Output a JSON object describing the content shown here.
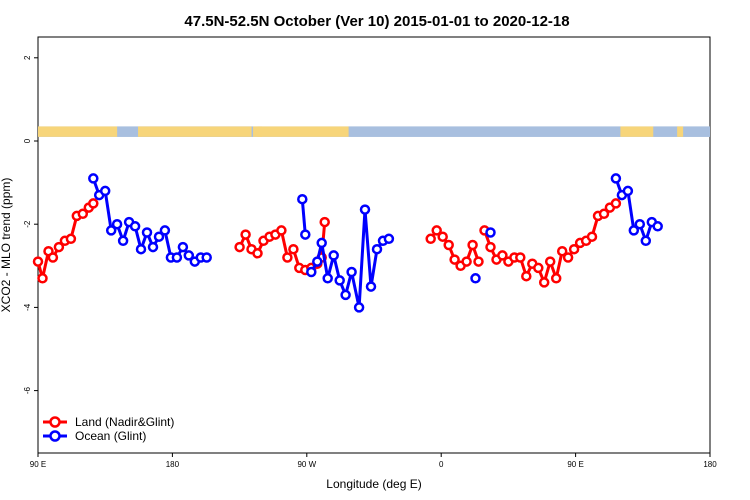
{
  "chart_data": {
    "type": "line",
    "title": "47.5N-52.5N October (Ver 10)   2015-01-01 to 2020-12-18",
    "xlabel": "Longitude (deg E)",
    "ylabel": "XCO2 - MLO trend (ppm)",
    "xlim": [
      90,
      540
    ],
    "ylim": [
      -7.5,
      2.5
    ],
    "x_ticks": [
      {
        "value": 90,
        "label": "90 E"
      },
      {
        "value": 180,
        "label": "180"
      },
      {
        "value": 270,
        "label": "90 W"
      },
      {
        "value": 360,
        "label": "0"
      },
      {
        "value": 450,
        "label": "90 E"
      },
      {
        "value": 540,
        "label": "180"
      }
    ],
    "y_ticks": [
      {
        "value": 2,
        "label": "2"
      },
      {
        "value": 0,
        "label": "0"
      },
      {
        "value": -2,
        "label": "-2"
      },
      {
        "value": -4,
        "label": "-4"
      },
      {
        "value": -6,
        "label": "-6"
      }
    ],
    "grid": false,
    "legend_position": "bottom-left",
    "land_ocean_band": {
      "y_range": [
        0.1,
        0.35
      ],
      "land_color": "#f7d57a",
      "ocean_color": "#a8bfdf",
      "land_segments": [
        [
          90,
          143
        ],
        [
          157,
          233
        ],
        [
          240,
          237
        ],
        [
          234,
          298
        ],
        [
          480,
          502
        ],
        [
          518,
          522
        ]
      ],
      "ocean_segments": [
        [
          143,
          234
        ],
        [
          298,
          480
        ],
        [
          502,
          540
        ]
      ]
    },
    "series": [
      {
        "name": "Land (Nadir&Glint)",
        "color": "#ff0000",
        "values": [
          [
            [
              90,
              -2.9
            ],
            [
              93,
              -3.3
            ],
            [
              97,
              -2.65
            ],
            [
              100,
              -2.8
            ],
            [
              104,
              -2.55
            ],
            [
              108,
              -2.4
            ],
            [
              112,
              -2.35
            ],
            [
              116,
              -1.8
            ],
            [
              120,
              -1.75
            ],
            [
              124,
              -1.6
            ],
            [
              127,
              -1.5
            ]
          ],
          [
            [
              225,
              -2.55
            ],
            [
              229,
              -2.25
            ],
            [
              233,
              -2.6
            ],
            [
              237,
              -2.7
            ],
            [
              241,
              -2.4
            ],
            [
              245,
              -2.3
            ],
            [
              249,
              -2.25
            ],
            [
              253,
              -2.15
            ],
            [
              257,
              -2.8
            ],
            [
              261,
              -2.6
            ],
            [
              265,
              -3.05
            ],
            [
              269,
              -3.1
            ],
            [
              273,
              -3.05
            ],
            [
              277,
              -2.95
            ],
            [
              280,
              -2.8
            ],
            [
              282,
              -1.95
            ]
          ],
          [
            [
              353,
              -2.35
            ],
            [
              357,
              -2.15
            ],
            [
              361,
              -2.3
            ],
            [
              365,
              -2.5
            ],
            [
              369,
              -2.85
            ],
            [
              373,
              -3.0
            ],
            [
              377,
              -2.9
            ],
            [
              381,
              -2.5
            ],
            [
              385,
              -2.9
            ]
          ],
          [
            [
              389,
              -2.15
            ],
            [
              393,
              -2.55
            ],
            [
              397,
              -2.85
            ],
            [
              401,
              -2.75
            ],
            [
              405,
              -2.9
            ],
            [
              409,
              -2.8
            ],
            [
              413,
              -2.8
            ],
            [
              417,
              -3.25
            ],
            [
              421,
              -2.95
            ],
            [
              425,
              -3.05
            ],
            [
              429,
              -3.4
            ],
            [
              433,
              -2.9
            ],
            [
              437,
              -3.3
            ],
            [
              441,
              -2.65
            ],
            [
              445,
              -2.8
            ],
            [
              449,
              -2.6
            ],
            [
              453,
              -2.45
            ],
            [
              457,
              -2.4
            ],
            [
              461,
              -2.3
            ],
            [
              465,
              -1.8
            ],
            [
              469,
              -1.75
            ],
            [
              473,
              -1.6
            ],
            [
              477,
              -1.5
            ]
          ]
        ]
      },
      {
        "name": "Ocean (Glint)",
        "color": "#0000ff",
        "values": [
          [
            [
              127,
              -0.9
            ],
            [
              131,
              -1.3
            ],
            [
              135,
              -1.2
            ],
            [
              139,
              -2.15
            ],
            [
              143,
              -2.0
            ],
            [
              147,
              -2.4
            ],
            [
              151,
              -1.95
            ],
            [
              155,
              -2.05
            ],
            [
              159,
              -2.6
            ],
            [
              163,
              -2.2
            ],
            [
              167,
              -2.55
            ],
            [
              171,
              -2.3
            ],
            [
              175,
              -2.15
            ],
            [
              179,
              -2.8
            ],
            [
              183,
              -2.8
            ],
            [
              187,
              -2.55
            ],
            [
              191,
              -2.75
            ],
            [
              195,
              -2.9
            ],
            [
              199,
              -2.8
            ],
            [
              203,
              -2.8
            ]
          ],
          [
            [
              267,
              -1.4
            ],
            [
              269,
              -2.25
            ]
          ],
          [
            [
              273,
              -3.15
            ],
            [
              277,
              -2.9
            ],
            [
              280,
              -2.45
            ],
            [
              284,
              -3.3
            ],
            [
              288,
              -2.75
            ],
            [
              292,
              -3.35
            ],
            [
              296,
              -3.7
            ],
            [
              300,
              -3.15
            ],
            [
              305,
              -4.0
            ],
            [
              309,
              -1.65
            ],
            [
              313,
              -3.5
            ],
            [
              317,
              -2.6
            ],
            [
              321,
              -2.4
            ],
            [
              325,
              -2.35
            ]
          ],
          [
            [
              383,
              -3.3
            ]
          ],
          [
            [
              393,
              -2.2
            ]
          ],
          [
            [
              477,
              -0.9
            ],
            [
              481,
              -1.3
            ],
            [
              485,
              -1.2
            ],
            [
              489,
              -2.15
            ],
            [
              493,
              -2.0
            ],
            [
              497,
              -2.4
            ],
            [
              501,
              -1.95
            ],
            [
              505,
              -2.05
            ]
          ]
        ]
      }
    ]
  }
}
